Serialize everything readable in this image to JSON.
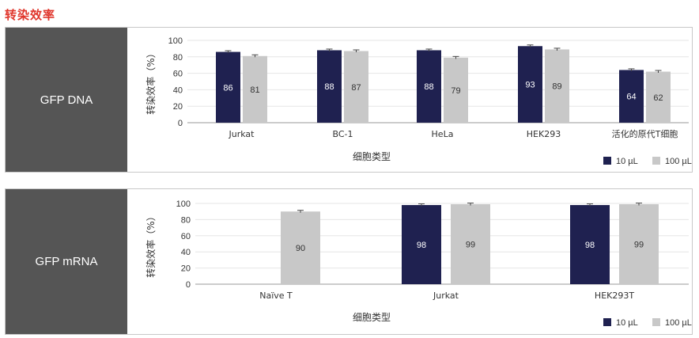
{
  "page": {
    "title": "转染效率"
  },
  "colors": {
    "series_10": "#1f2150",
    "series_100": "#c8c8c8",
    "title": "#e0352b",
    "label_bg": "#555555"
  },
  "chart_data": [
    {
      "type": "bar",
      "panel_label": "GFP DNA",
      "categories": [
        "Jurkat",
        "BC-1",
        "HeLa",
        "HEK293",
        "活化的原代T细胞"
      ],
      "series": [
        {
          "name": "10 µL",
          "values": [
            86,
            88,
            88,
            93,
            64
          ]
        },
        {
          "name": "100 µL",
          "values": [
            81,
            87,
            79,
            89,
            62
          ]
        }
      ],
      "xlabel": "细胞类型",
      "ylabel": "转染效率（%）",
      "ylim": [
        0,
        100
      ],
      "yticks": [
        0,
        20,
        40,
        60,
        80,
        100
      ],
      "grid": true,
      "legend": "bottom-right"
    },
    {
      "type": "bar",
      "panel_label": "GFP mRNA",
      "categories": [
        "Naïve T",
        "Jurkat",
        "HEK293T"
      ],
      "series": [
        {
          "name": "10 µL",
          "values": [
            null,
            98,
            98
          ]
        },
        {
          "name": "100 µL",
          "values": [
            90,
            99,
            99
          ]
        }
      ],
      "xlabel": "细胞类型",
      "ylabel": "转染效率（%）",
      "ylim": [
        0,
        100
      ],
      "yticks": [
        0,
        20,
        40,
        60,
        80,
        100
      ],
      "grid": true,
      "legend": "bottom-right"
    }
  ]
}
